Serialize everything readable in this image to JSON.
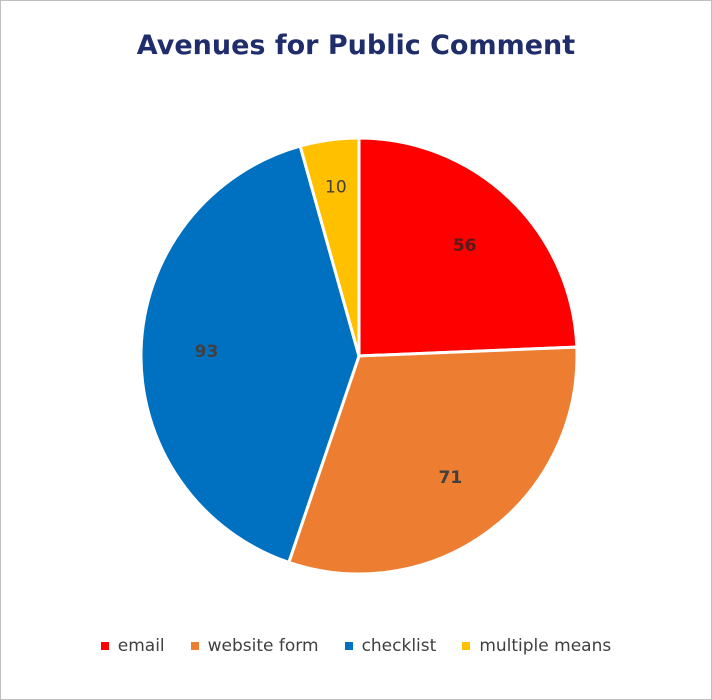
{
  "chart_data": {
    "type": "pie",
    "title": "Avenues for Public Comment",
    "categories": [
      "email",
      "website form",
      "checklist",
      "multiple means"
    ],
    "values": [
      56,
      71,
      93,
      10
    ],
    "colors": [
      "#ff0000",
      "#ed7d31",
      "#0070c0",
      "#ffc000"
    ],
    "legend_position": "bottom"
  }
}
